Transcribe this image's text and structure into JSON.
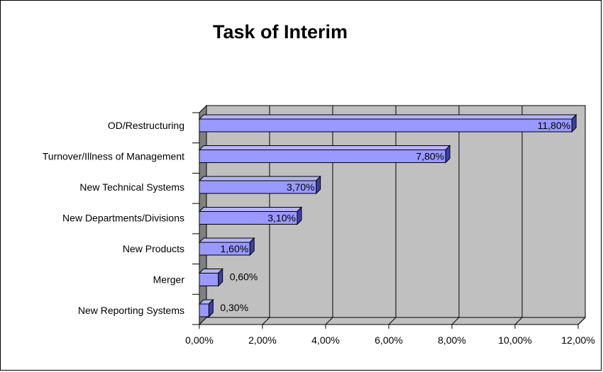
{
  "chart_data": {
    "type": "bar",
    "orientation": "horizontal",
    "title": "Task of Interim",
    "categories": [
      "OD/Restructuring",
      "Turnover/Illness of Management",
      "New Technical Systems",
      "New Departments/Divisions",
      "New Products",
      "Merger",
      "New Reporting Systems"
    ],
    "values": [
      11.8,
      7.8,
      3.7,
      3.1,
      1.6,
      0.6,
      0.3
    ],
    "value_labels": [
      "11,80%",
      "7,80%",
      "3,70%",
      "3,10%",
      "1,60%",
      "0,60%",
      "0,30%"
    ],
    "xlim": [
      0,
      12
    ],
    "x_ticks": [
      0,
      2,
      4,
      6,
      8,
      10,
      12
    ],
    "x_tick_labels": [
      "0,00%",
      "2,00%",
      "4,00%",
      "6,00%",
      "8,00%",
      "10,00%",
      "12,00%"
    ],
    "grid": true,
    "legend": "none",
    "colors": {
      "bar": "#9999ff",
      "plot_area": "#c0c0c0",
      "wall": "#808080"
    }
  }
}
